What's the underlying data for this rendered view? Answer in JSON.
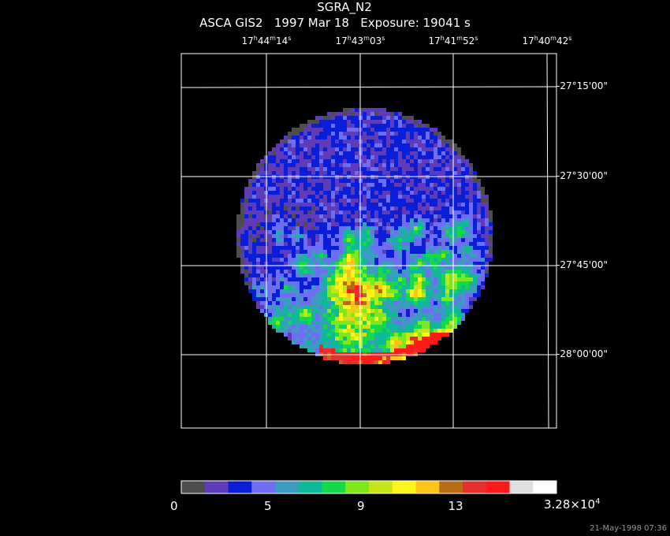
{
  "header": {
    "target": "SGRA_N2",
    "instrument": "ASCA GIS2",
    "date": "1997 Mar 18",
    "exposure": "Exposure: 19041 s"
  },
  "ra_labels": [
    {
      "h": "17",
      "m": "44",
      "s": "14"
    },
    {
      "h": "17",
      "m": "43",
      "s": "03"
    },
    {
      "h": "17",
      "m": "41",
      "s": "52"
    },
    {
      "h": "17",
      "m": "40",
      "s": "42"
    }
  ],
  "dec_labels": [
    "-27°15'00\"",
    "-27°30'00\"",
    "-27°45'00\"",
    "-28°00'00\""
  ],
  "colorbar": {
    "colors": [
      "#4d4d4d",
      "#5f3bb8",
      "#0a1ed8",
      "#6e6ef2",
      "#3c9cbf",
      "#10b89a",
      "#17d84a",
      "#7ee81c",
      "#c6e61a",
      "#fff51a",
      "#ffc31a",
      "#b86a14",
      "#e63030",
      "#ff1a1a",
      "#e0e0e0",
      "#ffffff"
    ],
    "ticks": [
      "0",
      "5",
      "9",
      "13"
    ],
    "max_label": "3.28×10",
    "max_exp": "4"
  },
  "timestamp": "21-May-1998 07:36"
}
